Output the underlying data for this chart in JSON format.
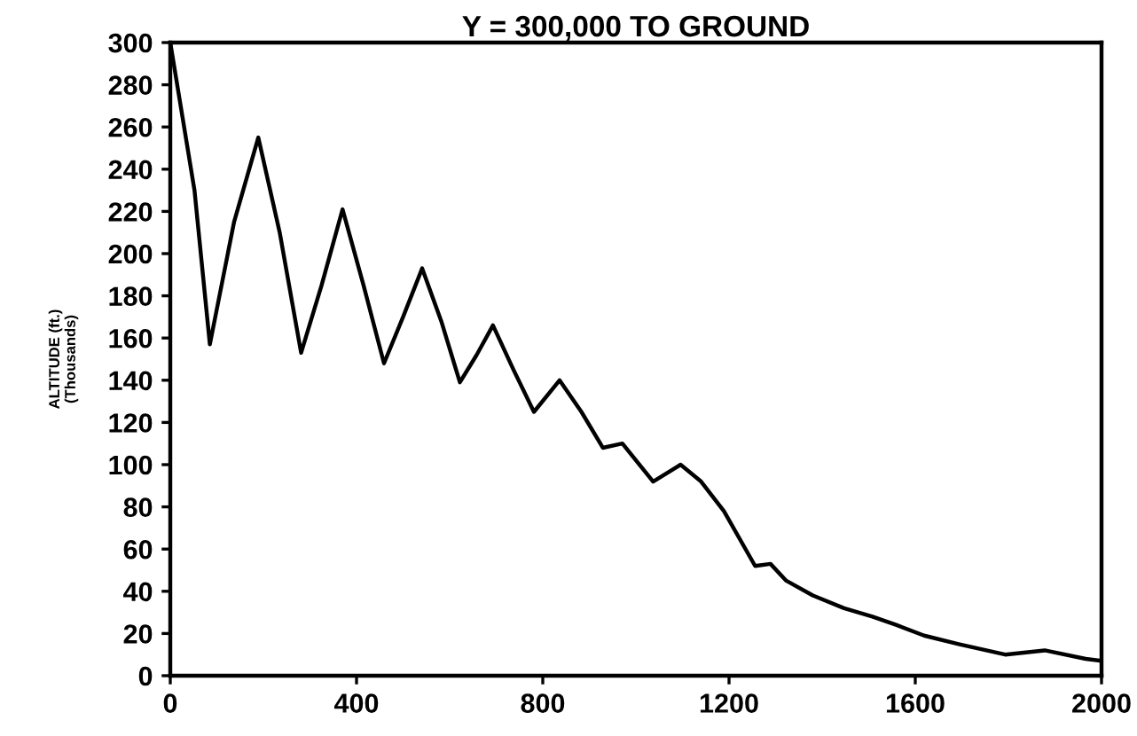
{
  "chart_data": {
    "type": "line",
    "title": "Y = 300,000 TO GROUND",
    "ylabel": "ALTITUDE (ft.)\n(Thousands)",
    "x": [
      0,
      52,
      85,
      137,
      189,
      235,
      281,
      325,
      370,
      415,
      459,
      500,
      541,
      582,
      622,
      658,
      693,
      737,
      781,
      836,
      883,
      929,
      971,
      1037,
      1096,
      1140,
      1189,
      1256,
      1289,
      1323,
      1380,
      1447,
      1508,
      1560,
      1619,
      1693,
      1793,
      1878,
      1966,
      2000
    ],
    "series": [
      {
        "color": "#000000",
        "values": [
          300,
          230,
          157,
          215,
          255,
          210,
          153,
          185,
          221,
          185,
          148,
          170,
          193,
          168,
          139,
          152,
          166,
          145,
          125,
          140,
          125,
          108,
          110,
          92,
          100,
          92,
          78,
          52,
          53,
          45,
          38,
          32,
          28,
          24,
          19,
          15,
          10,
          12,
          8,
          7
        ]
      }
    ],
    "xlim": [
      0,
      2000
    ],
    "ylim": [
      0,
      300
    ],
    "xticks": [
      0,
      400,
      800,
      1200,
      1600,
      2000
    ],
    "yticks": [
      0,
      20,
      40,
      60,
      80,
      100,
      120,
      140,
      160,
      180,
      200,
      220,
      240,
      260,
      280,
      300
    ],
    "grid": false,
    "marker": "none",
    "line_style": "solid"
  }
}
